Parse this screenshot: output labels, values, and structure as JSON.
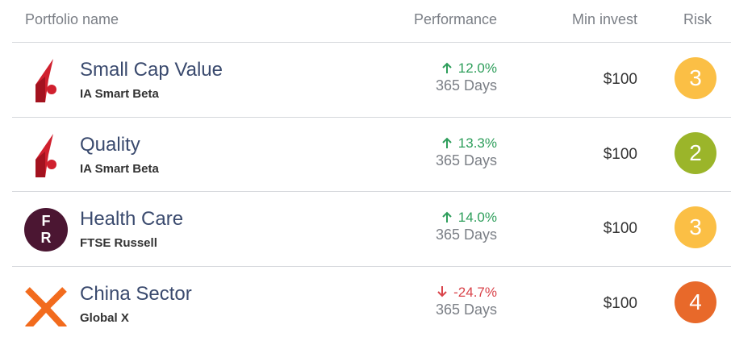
{
  "header": {
    "columns": [
      "Portfolio name",
      "Performance",
      "Min invest",
      "Risk"
    ]
  },
  "table": {
    "rows": [
      {
        "name": "Small Cap Value",
        "provider": "IA Smart Beta",
        "logo": "ia",
        "performance": "12.0%",
        "trend": "up",
        "period": "365 Days",
        "min_invest": "$100",
        "risk": "3",
        "risk_color": "#fbbf45"
      },
      {
        "name": "Quality",
        "provider": "IA Smart Beta",
        "logo": "ia",
        "performance": "13.3%",
        "trend": "up",
        "period": "365 Days",
        "min_invest": "$100",
        "risk": "2",
        "risk_color": "#9bb52a"
      },
      {
        "name": "Health Care",
        "provider": "FTSE Russell",
        "logo": "fr",
        "logo_letters": [
          "F",
          "R"
        ],
        "performance": "14.0%",
        "trend": "up",
        "period": "365 Days",
        "min_invest": "$100",
        "risk": "3",
        "risk_color": "#fbbf45"
      },
      {
        "name": "China Sector",
        "provider": "Global X",
        "logo": "gx",
        "performance": "-24.7%",
        "trend": "down",
        "period": "365 Days",
        "min_invest": "$100",
        "risk": "4",
        "risk_color": "#e8692a"
      }
    ]
  }
}
